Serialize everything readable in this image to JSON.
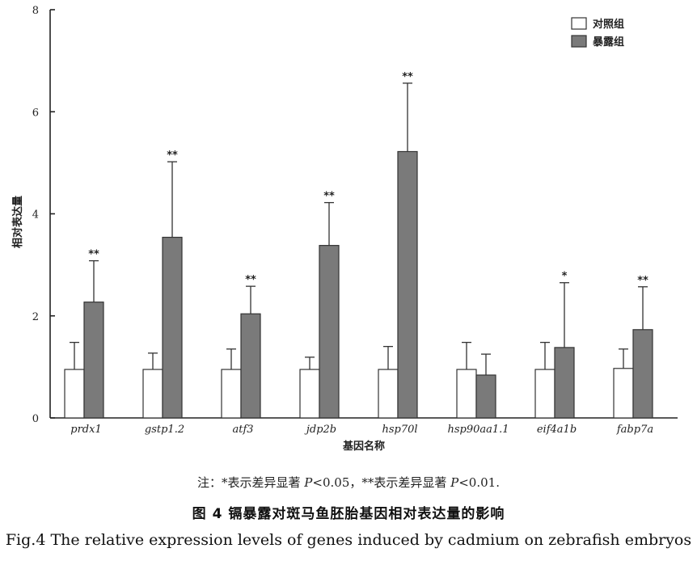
{
  "chart_data": {
    "type": "bar",
    "categories": [
      "prdx1",
      "gstp1.2",
      "atf3",
      "jdp2b",
      "hsp70l",
      "hsp90aa1.1",
      "eif4a1b",
      "fabp7a"
    ],
    "series": [
      {
        "name": "对照组",
        "color": "#ffffff",
        "values": [
          0.95,
          0.95,
          0.95,
          0.95,
          0.95,
          0.95,
          0.95,
          0.97
        ],
        "error_upper": [
          1.48,
          1.27,
          1.35,
          1.19,
          1.4,
          1.48,
          1.48,
          1.35
        ]
      },
      {
        "name": "暴露组",
        "color": "#7a7a7a",
        "values": [
          2.27,
          3.54,
          2.04,
          3.38,
          5.22,
          0.84,
          1.38,
          1.73
        ],
        "error_upper": [
          3.08,
          5.02,
          2.58,
          4.22,
          6.56,
          1.25,
          2.65,
          2.57
        ],
        "significance": [
          "**",
          "**",
          "**",
          "**",
          "**",
          "",
          "*",
          "**"
        ]
      }
    ],
    "ylim": [
      0,
      8
    ],
    "yticks": [
      "0",
      "2",
      "4",
      "6",
      "8"
    ],
    "ytick_values": [
      0,
      2,
      4,
      6,
      8
    ],
    "ylabel": "相对表达量",
    "xlabel": "基因名称",
    "legend_position": "top-right",
    "grid": false
  },
  "note": {
    "prefix": "注：",
    "star1": "*",
    "text1": "表示差异显著 ",
    "p1": "P",
    "cmp1": "<0.05，",
    "star2": "**",
    "text2": "表示差异显著 ",
    "p2": "P",
    "cmp2": "<0.01."
  },
  "figure": {
    "title_cn": "图 4   镉暴露对斑马鱼胚胎基因相对表达量的影响",
    "title_en": "Fig.4 The relative expression levels of genes induced by cadmium on zebrafish embryos"
  }
}
